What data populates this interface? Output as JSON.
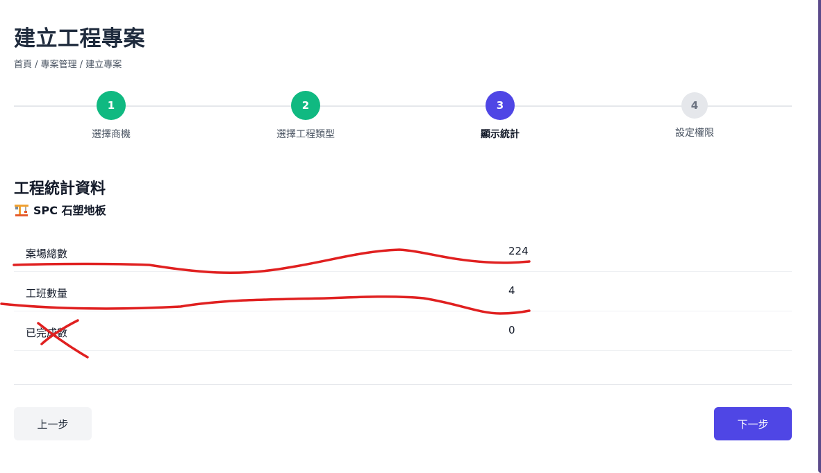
{
  "page": {
    "title": "建立工程專案",
    "breadcrumb": "首頁 / 專案管理 / 建立專案"
  },
  "stepper": {
    "steps": [
      {
        "number": "1",
        "label": "選擇商機",
        "state": "done"
      },
      {
        "number": "2",
        "label": "選擇工程類型",
        "state": "done"
      },
      {
        "number": "3",
        "label": "顯示統計",
        "state": "active"
      },
      {
        "number": "4",
        "label": "設定權限",
        "state": "todo"
      }
    ]
  },
  "section": {
    "title": "工程統計資料",
    "icon": "construction-crane-icon",
    "subtitle": "SPC 石塑地板"
  },
  "stats": [
    {
      "label": "案場總數",
      "value": "224"
    },
    {
      "label": "工班數量",
      "value": "4"
    },
    {
      "label": "已完成數",
      "value": "0"
    }
  ],
  "buttons": {
    "prev_label": "上一步",
    "next_label": "下一步"
  },
  "colors": {
    "done": "#10b981",
    "active": "#4f46e5",
    "todo": "#e5e7eb",
    "annotation": "#e02020"
  }
}
